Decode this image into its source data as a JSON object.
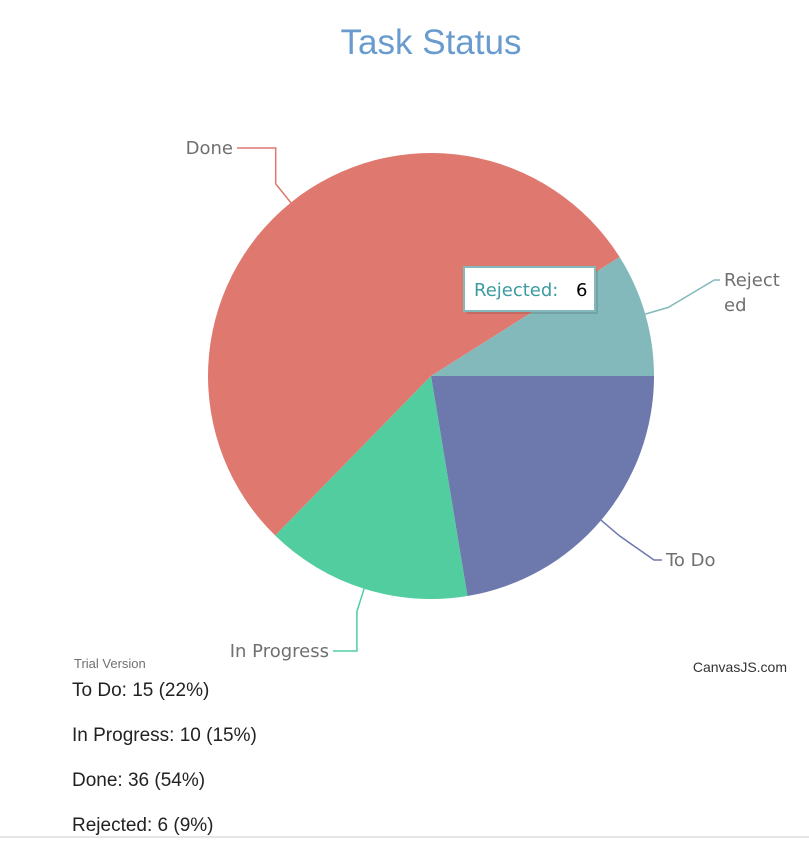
{
  "chart_data": {
    "type": "pie",
    "title": "Task Status",
    "categories": [
      "To Do",
      "In Progress",
      "Done",
      "Rejected"
    ],
    "values": [
      15,
      10,
      36,
      6
    ],
    "colors": [
      "#6d78ad",
      "#51cda0",
      "#df7970",
      "#84b9bc"
    ],
    "index_label_color": "#707070",
    "title_color": "#6a9bcf",
    "tooltip": {
      "label": "Rejected:",
      "value": "6",
      "label_color": "#3c9ba0",
      "border_color": "#84b9bc"
    }
  },
  "footer": {
    "trial_text": "Trial Version",
    "brand_text": "CanvasJS.com"
  },
  "summary": {
    "items": [
      "To Do: 15 (22%)",
      "In Progress: 10 (15%)",
      "Done: 36 (54%)",
      "Rejected: 6 (9%)"
    ]
  }
}
